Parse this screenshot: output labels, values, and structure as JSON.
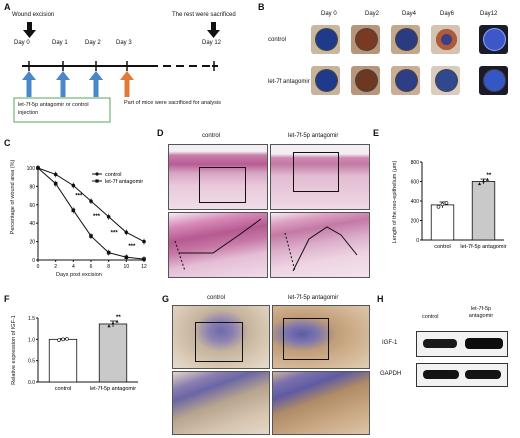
{
  "panels": {
    "A": {
      "label": "A",
      "wound_excision": "Wound excision",
      "rest_sacrificed": "The rest were sacrificed",
      "days": [
        "Day 0",
        "Day 1",
        "Day 2",
        "Day 3",
        "Day 12"
      ],
      "injection_box": "let-7f-5p antagomir or control injection",
      "sacrificed_note": "Part of mice were sacrificed for analysis"
    },
    "B": {
      "label": "B",
      "columns": [
        "Day 0",
        "Day2",
        "Day4",
        "Day6",
        "Day12"
      ],
      "rows": [
        "control",
        "let-7f antagomir"
      ]
    },
    "C": {
      "label": "C",
      "ylabel": "Percentage of wound area (%)",
      "xlabel": "Days post excision",
      "legend": [
        "control",
        "let-7f antagomir"
      ],
      "significance": [
        "***",
        "***",
        "***",
        "***"
      ]
    },
    "D": {
      "label": "D",
      "col_labels": [
        "control",
        "let-7f-5p antagomir"
      ]
    },
    "E": {
      "label": "E",
      "ylabel": "Length of the neo-epithelium (μm)",
      "significance": "**"
    },
    "F": {
      "label": "F",
      "ylabel": "Relative expression of IGF-1",
      "significance": "**"
    },
    "G": {
      "label": "G",
      "col_labels": [
        "control",
        "let-7f-5p antagomir"
      ]
    },
    "H": {
      "label": "H",
      "col_labels": [
        "control",
        "let-7f-5p antagomir"
      ],
      "row_labels": [
        "IGF-1",
        "GAPDH"
      ]
    }
  },
  "chart_data": [
    {
      "type": "line",
      "panel": "C",
      "x": [
        0,
        2,
        4,
        6,
        8,
        10,
        12
      ],
      "series": [
        {
          "name": "control",
          "values": [
            100,
            93,
            81,
            64,
            47,
            30,
            20
          ]
        },
        {
          "name": "let-7f antagomir",
          "values": [
            100,
            83,
            54,
            26,
            8,
            3,
            1
          ]
        }
      ],
      "xticks": [
        "0",
        "2",
        "4",
        "6",
        "8",
        "10",
        "12"
      ],
      "yticks": [
        "0",
        "20",
        "40",
        "60",
        "80",
        "100"
      ],
      "ylim": [
        0,
        100
      ],
      "xlim": [
        0,
        12
      ]
    },
    {
      "type": "bar",
      "panel": "E",
      "categories": [
        "control",
        "let-7f-5p antagomir"
      ],
      "values": [
        360,
        600
      ],
      "errors": [
        30,
        25
      ],
      "points": [
        [
          340,
          365,
          380
        ],
        [
          575,
          605,
          620
        ]
      ],
      "yticks": [
        "0",
        "200",
        "400",
        "600",
        "800"
      ],
      "ylim": [
        0,
        800
      ]
    },
    {
      "type": "bar",
      "panel": "F",
      "categories": [
        "control",
        "let-7f-5p antagomir"
      ],
      "values": [
        1.0,
        1.36
      ],
      "errors": [
        0.02,
        0.07
      ],
      "points": [
        [
          0.98,
          1.0,
          1.01
        ],
        [
          1.31,
          1.38,
          1.42
        ]
      ],
      "yticks": [
        "0.0",
        "0.5",
        "1.0",
        "1.5"
      ],
      "ylim": [
        0,
        1.5
      ]
    }
  ]
}
